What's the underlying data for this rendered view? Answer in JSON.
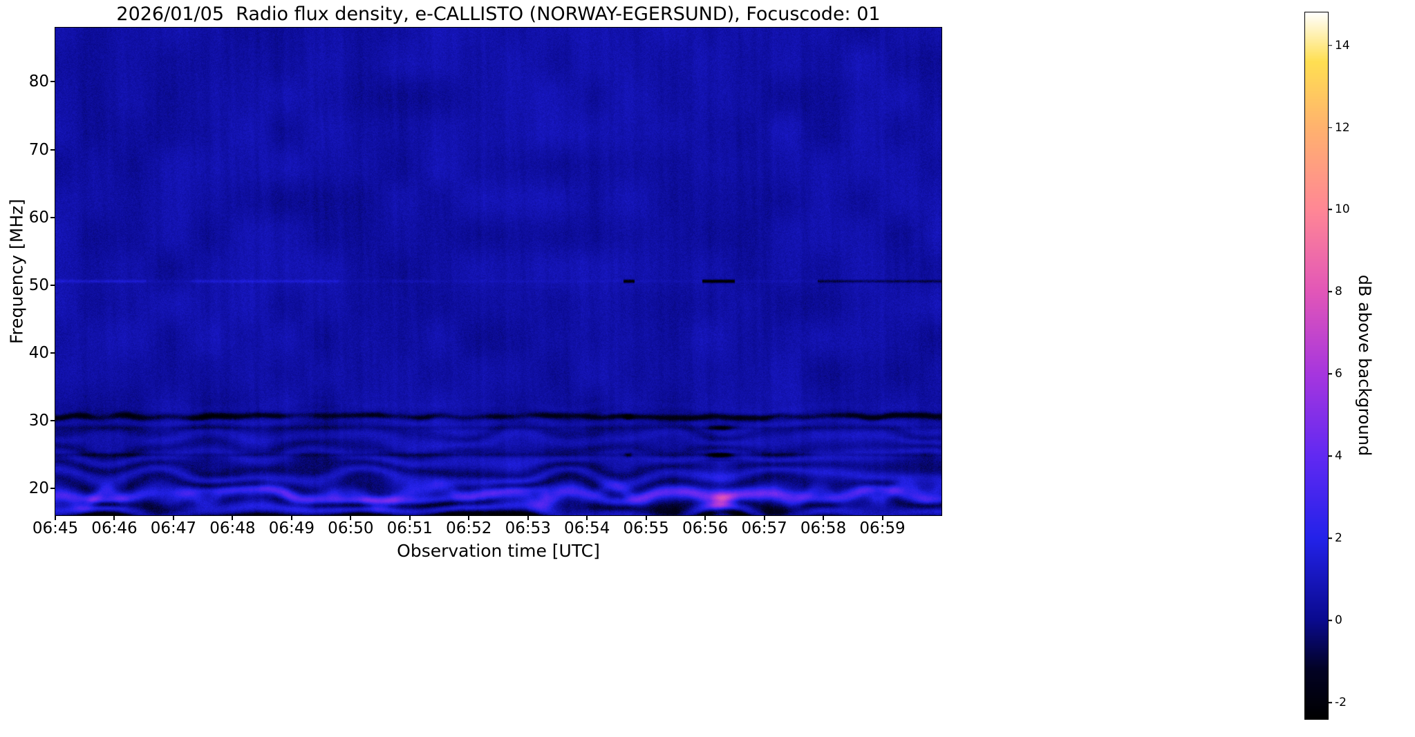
{
  "chart_data": {
    "type": "heatmap",
    "subtype": "radio-spectrogram",
    "title": "2026/01/05  Radio flux density, e-CALLISTO (NORWAY-EGERSUND), Focuscode: 01",
    "meta": {
      "date": "2026/01/05",
      "instrument": "e-CALLISTO",
      "station": "NORWAY-EGERSUND",
      "focuscode": "01"
    },
    "xlabel": "Observation time [UTC]",
    "ylabel": "Frequency [MHz]",
    "x_ticks": [
      "06:45",
      "06:46",
      "06:47",
      "06:48",
      "06:49",
      "06:50",
      "06:51",
      "06:52",
      "06:53",
      "06:54",
      "06:55",
      "06:56",
      "06:57",
      "06:58",
      "06:59"
    ],
    "x_total_minutes": 15,
    "y_ticks": [
      20,
      30,
      40,
      50,
      60,
      70,
      80
    ],
    "y_range_mhz": [
      16,
      88
    ],
    "grid": false,
    "colorbar": {
      "label": "dB above background",
      "ticks": [
        -2,
        0,
        2,
        4,
        6,
        8,
        10,
        12,
        14
      ],
      "range": [
        -2.4,
        14.8
      ],
      "colormap": [
        {
          "value": -2.4,
          "color": "#000000"
        },
        {
          "value": -1.2,
          "color": "#020224"
        },
        {
          "value": 0.0,
          "color": "#0a0a8e"
        },
        {
          "value": 2.0,
          "color": "#2322e9"
        },
        {
          "value": 4.0,
          "color": "#6129f2"
        },
        {
          "value": 6.0,
          "color": "#a636de"
        },
        {
          "value": 8.0,
          "color": "#e256b8"
        },
        {
          "value": 10.0,
          "color": "#ff8795"
        },
        {
          "value": 12.0,
          "color": "#ffb26e"
        },
        {
          "value": 13.6,
          "color": "#ffdf52"
        },
        {
          "value": 14.8,
          "color": "#ffffff"
        }
      ]
    },
    "features": [
      {
        "id": "background",
        "type": "noise_floor",
        "level_db": 0.5,
        "grain_db": 0.35,
        "mottle_db": 0.4,
        "description": "Uniform dark-blue noise background covering 16-88 MHz for the whole interval"
      },
      {
        "id": "ridges",
        "type": "wavy_ridges",
        "freq_max_mhz": 34,
        "spacing_mhz": 2.6,
        "amp_db": 1.5,
        "decay_mhz": 9,
        "description": "Fingerprint-like wavy interference ridges below ~33 MHz"
      },
      {
        "id": "bright_band",
        "type": "bright_band",
        "freq_mhz": 18.9,
        "width_mhz": 1.05,
        "amp_db": 2.1,
        "wobble_mhz": 1.0,
        "description": "Bright undulating blue band near 19 MHz present across all times"
      },
      {
        "id": "bottom_edge",
        "type": "dark_band",
        "freq_mhz": 15.7,
        "width_mhz": 1.0,
        "amp_db": -1.4,
        "description": "Dark lower edge of the spectrogram"
      },
      {
        "id": "dark_band_30",
        "type": "dark_band",
        "freq_mhz": 30.55,
        "width_mhz": 0.45,
        "amp_db": -1.7,
        "description": "Dark wavy absorption lane near 30.5 MHz"
      },
      {
        "id": "dark_band_29",
        "type": "dark_band",
        "freq_mhz": 28.9,
        "width_mhz": 0.35,
        "amp_db": -0.6,
        "description": "Weaker dark lane near 29 MHz"
      },
      {
        "id": "dark_band_25",
        "type": "dark_band",
        "freq_mhz": 24.9,
        "width_mhz": 0.3,
        "amp_db": -0.9,
        "description": "Intermittent thin dark lane near 25 MHz"
      },
      {
        "id": "line_50",
        "type": "narrow_line",
        "freq_mhz": 50.55,
        "width_mhz": 0.22,
        "base_amp_db": 0.25,
        "segments": [
          {
            "t_min": 0.0,
            "t_max": 1.55,
            "amp_db": 0.9
          },
          {
            "t_min": 2.3,
            "t_max": 4.8,
            "amp_db": 0.85
          },
          {
            "t_min": 5.7,
            "t_max": 6.4,
            "amp_db": 0.5
          },
          {
            "t_min": 9.62,
            "t_max": 9.8,
            "amp_db": -3.2
          },
          {
            "t_min": 10.95,
            "t_max": 11.5,
            "amp_db": -3.4
          },
          {
            "t_min": 12.9,
            "t_max": 15.0,
            "amp_db": -1.3
          }
        ],
        "description": "Narrow carrier at 50.5 MHz: faint bright 06:45-06:49.5, dark dots near 06:54.7, dark dashes near 06:56, dark thin line after 06:58"
      },
      {
        "id": "event_0656",
        "type": "column_event",
        "t_center_min": 11.27,
        "t_sigma_min": 0.22,
        "boost_below_mhz": 24,
        "boost_db": 0.8,
        "notches": [
          {
            "freq_mhz": 24.9,
            "amp_db": -3.5
          },
          {
            "freq_mhz": 28.9,
            "amp_db": -2.5
          }
        ],
        "description": "Vertical disturbance near 06:56 with low-band brightening and dark notches at 25 and 29 MHz"
      },
      {
        "id": "hotspots",
        "type": "hotspots",
        "items": [
          {
            "t_min": 8.3,
            "freq_mhz": 18.8,
            "amp_db": 2.2,
            "t_sigma": 0.12,
            "f_sigma": 0.8
          },
          {
            "t_min": 11.27,
            "freq_mhz": 18.4,
            "amp_db": 4.2,
            "t_sigma": 0.2,
            "f_sigma": 1.0
          },
          {
            "t_min": 4.7,
            "freq_mhz": 19.2,
            "amp_db": 1.6,
            "t_sigma": 0.15,
            "f_sigma": 0.9
          }
        ],
        "description": "Localized bright magenta patches inside the 19 MHz band (strongest at 06:56)"
      },
      {
        "id": "specks_0654",
        "type": "specks",
        "t_min": 9.7,
        "t_sigma": 0.07,
        "items": [
          {
            "freq_mhz": 30.5,
            "amp_db": -2.5
          },
          {
            "freq_mhz": 24.9,
            "amp_db": -2.0
          }
        ],
        "description": "Small black specks near 06:54.7 at 30.5 and 25 MHz"
      }
    ]
  }
}
